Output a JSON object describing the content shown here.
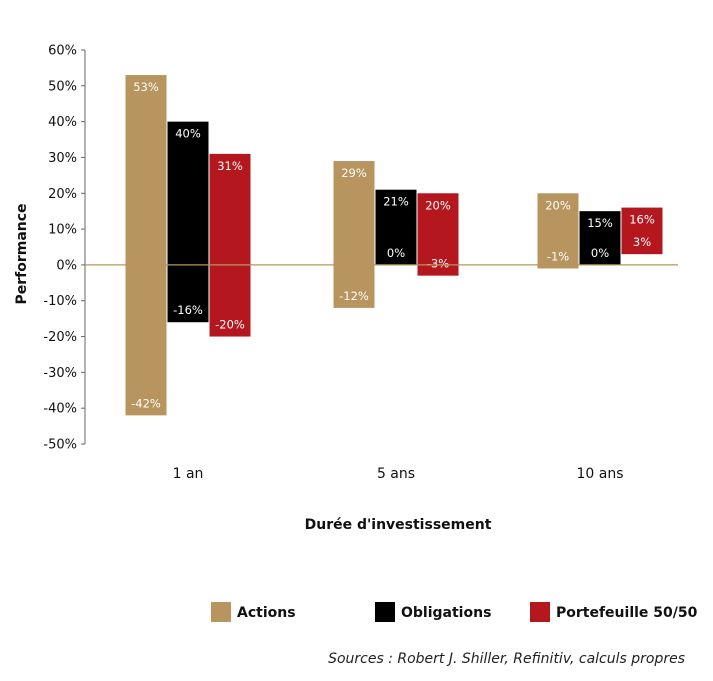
{
  "chart_data": {
    "type": "bar",
    "subtype": "floating-range",
    "title": "",
    "xlabel": "Durée d'investissement",
    "ylabel": "Performance",
    "ylim": [
      -50,
      60
    ],
    "yticks": [
      "60%",
      "50%",
      "40%",
      "30%",
      "20%",
      "10%",
      "0%",
      "-10%",
      "-20%",
      "-30%",
      "-40%",
      "-50%"
    ],
    "ytick_values": [
      60,
      50,
      40,
      30,
      20,
      10,
      0,
      -10,
      -20,
      -30,
      -40,
      -50
    ],
    "categories": [
      "1 an",
      "5 ans",
      "10 ans"
    ],
    "grid": false,
    "legend_position": "bottom",
    "series": [
      {
        "name": "Actions",
        "color": "#b8945e",
        "max": [
          53,
          29,
          20
        ],
        "min": [
          -42,
          -12,
          -1
        ],
        "max_labels": [
          "53%",
          "29%",
          "20%"
        ],
        "min_labels": [
          "-42%",
          "-12%",
          "-1%"
        ]
      },
      {
        "name": "Obligations",
        "color": "#000000",
        "max": [
          40,
          21,
          15
        ],
        "min": [
          -16,
          0,
          0
        ],
        "max_labels": [
          "40%",
          "21%",
          "15%"
        ],
        "min_labels": [
          "-16%",
          "0%",
          "0%"
        ]
      },
      {
        "name": "Portefeuille 50/50",
        "color": "#b5171e",
        "max": [
          31,
          20,
          16
        ],
        "min": [
          -20,
          -3,
          3
        ],
        "max_labels": [
          "31%",
          "20%",
          "16%"
        ],
        "min_labels": [
          "-20%",
          "-3%",
          "3%"
        ]
      }
    ],
    "zero_line_color": "#b8945e",
    "source": "Sources : Robert J. Shiller, Refinitiv, calculs propres"
  }
}
